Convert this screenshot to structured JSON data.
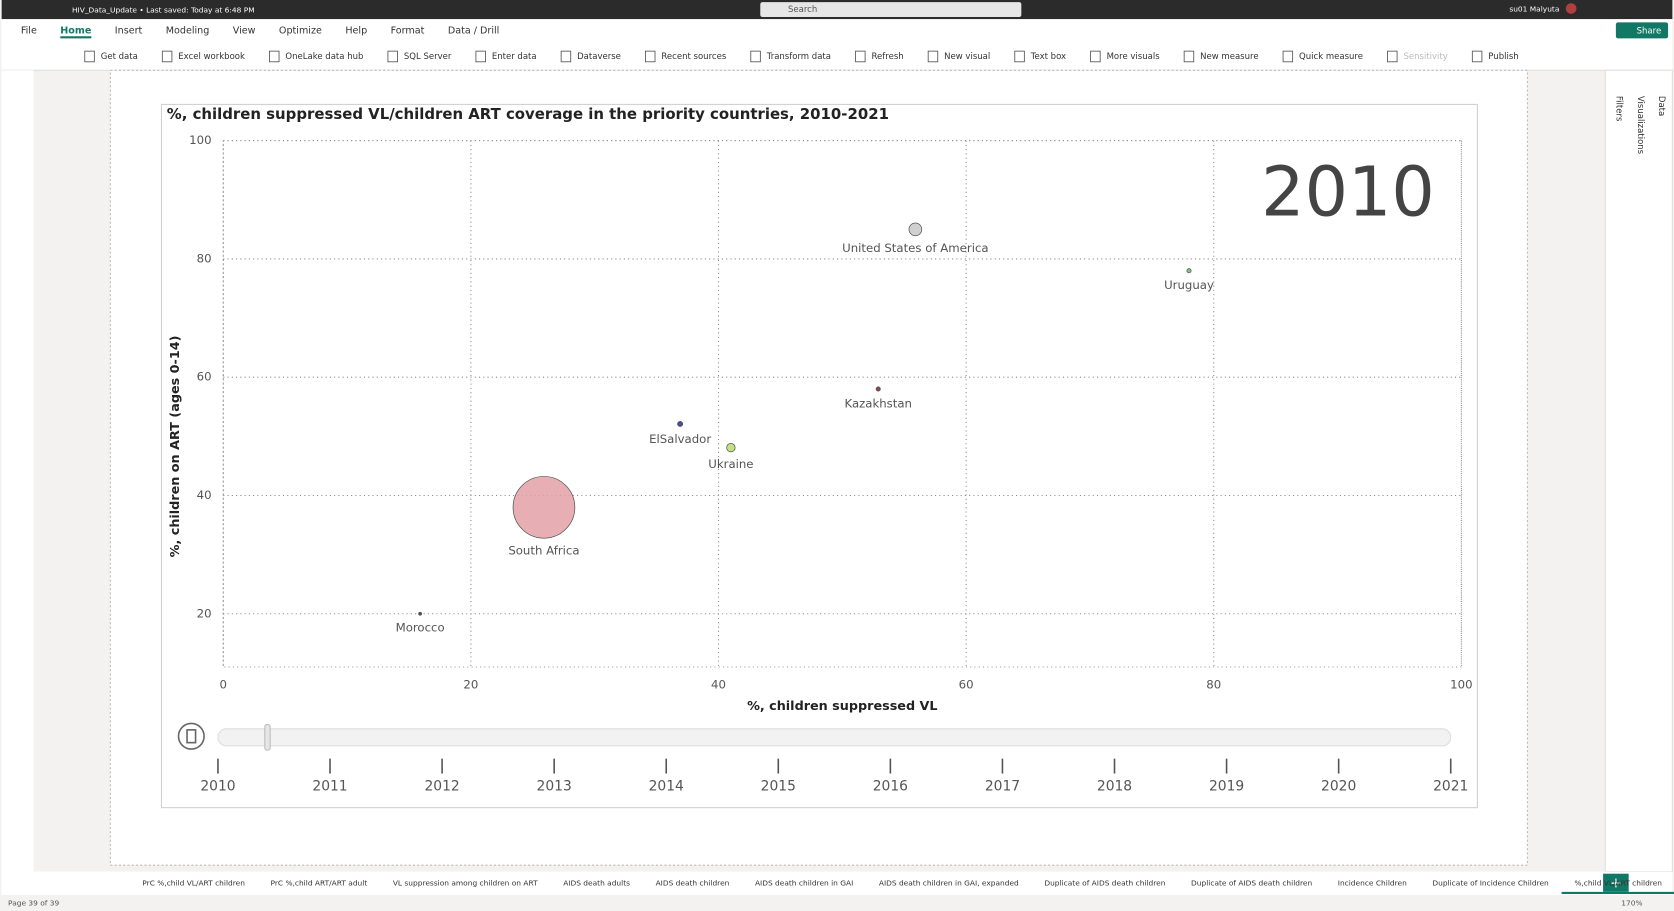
{
  "titlebar": {
    "file": "HIV_Data_Update • Last saved: Today at 6:48 PM",
    "search": "Search",
    "user": "su01 Malyuta",
    "share": "Share"
  },
  "menu": [
    "File",
    "Home",
    "Insert",
    "Modeling",
    "View",
    "Optimize",
    "Help",
    "Format",
    "Data / Drill"
  ],
  "toolbar": [
    "Get data",
    "Excel workbook",
    "OneLake data hub",
    "SQL Server",
    "Enter data",
    "Dataverse",
    "Recent sources",
    "Transform data",
    "Refresh",
    "New visual",
    "Text box",
    "More visuals",
    "New measure",
    "Quick measure",
    "Sensitivity",
    "Publish"
  ],
  "panes": [
    "Filters",
    "Visualizations",
    "Data"
  ],
  "chart_data": {
    "type": "scatter",
    "title": "%, children suppressed VL/children ART coverage in the priority countries, 2010-2021",
    "x_label": "%, children suppressed VL",
    "y_label": "%, children on ART (ages 0-14)",
    "xlim": [
      0,
      100
    ],
    "ylim": [
      11,
      100
    ],
    "xticks": [
      0,
      20,
      40,
      60,
      80,
      100
    ],
    "yticks": [
      20,
      40,
      60,
      80,
      100
    ],
    "grid": true,
    "series": [
      {
        "name": "United States of America",
        "color": "#c8c8c8",
        "x": 55.9,
        "y": 85,
        "size": 36
      },
      {
        "name": "Uruguay",
        "color": "#5cbf6a",
        "x": 78,
        "y": 78,
        "size": 4
      },
      {
        "name": "Kazakhstan",
        "color": "#6b2b2b",
        "x": 52.9,
        "y": 58,
        "size": 4
      },
      {
        "name": "ElSalvador",
        "color": "#2b2b8a",
        "x": 36.9,
        "y": 52.1,
        "size": 6
      },
      {
        "name": "Ukraine",
        "color": "#b8dc6e",
        "x": 41,
        "y": 48.1,
        "size": 16
      },
      {
        "name": "South Africa",
        "color": "#e3a1a7",
        "x": 25.9,
        "y": 38,
        "size": 840
      },
      {
        "name": "Morocco",
        "color": "#333333",
        "x": 15.9,
        "y": 20,
        "size": 2
      }
    ],
    "play_axis": {
      "years": [
        2010,
        2011,
        2012,
        2013,
        2014,
        2015,
        2016,
        2017,
        2018,
        2019,
        2020,
        2021
      ],
      "current": 2010
    }
  },
  "pages": [
    "PrC %,child VL/ART children",
    "PrC %,child ART/ART adult",
    "VL suppression among children on ART",
    "AIDS death adults",
    "AIDS death children",
    "AIDS death children in GAI",
    "AIDS death children in GAI, expanded",
    "Duplicate of AIDS death children",
    "Duplicate of AIDS death children",
    "Incidence Children",
    "Duplicate of Incidence Children",
    "%,child VL/ART children"
  ],
  "status": {
    "page": "Page 39 of 39",
    "zoom": "170%"
  }
}
